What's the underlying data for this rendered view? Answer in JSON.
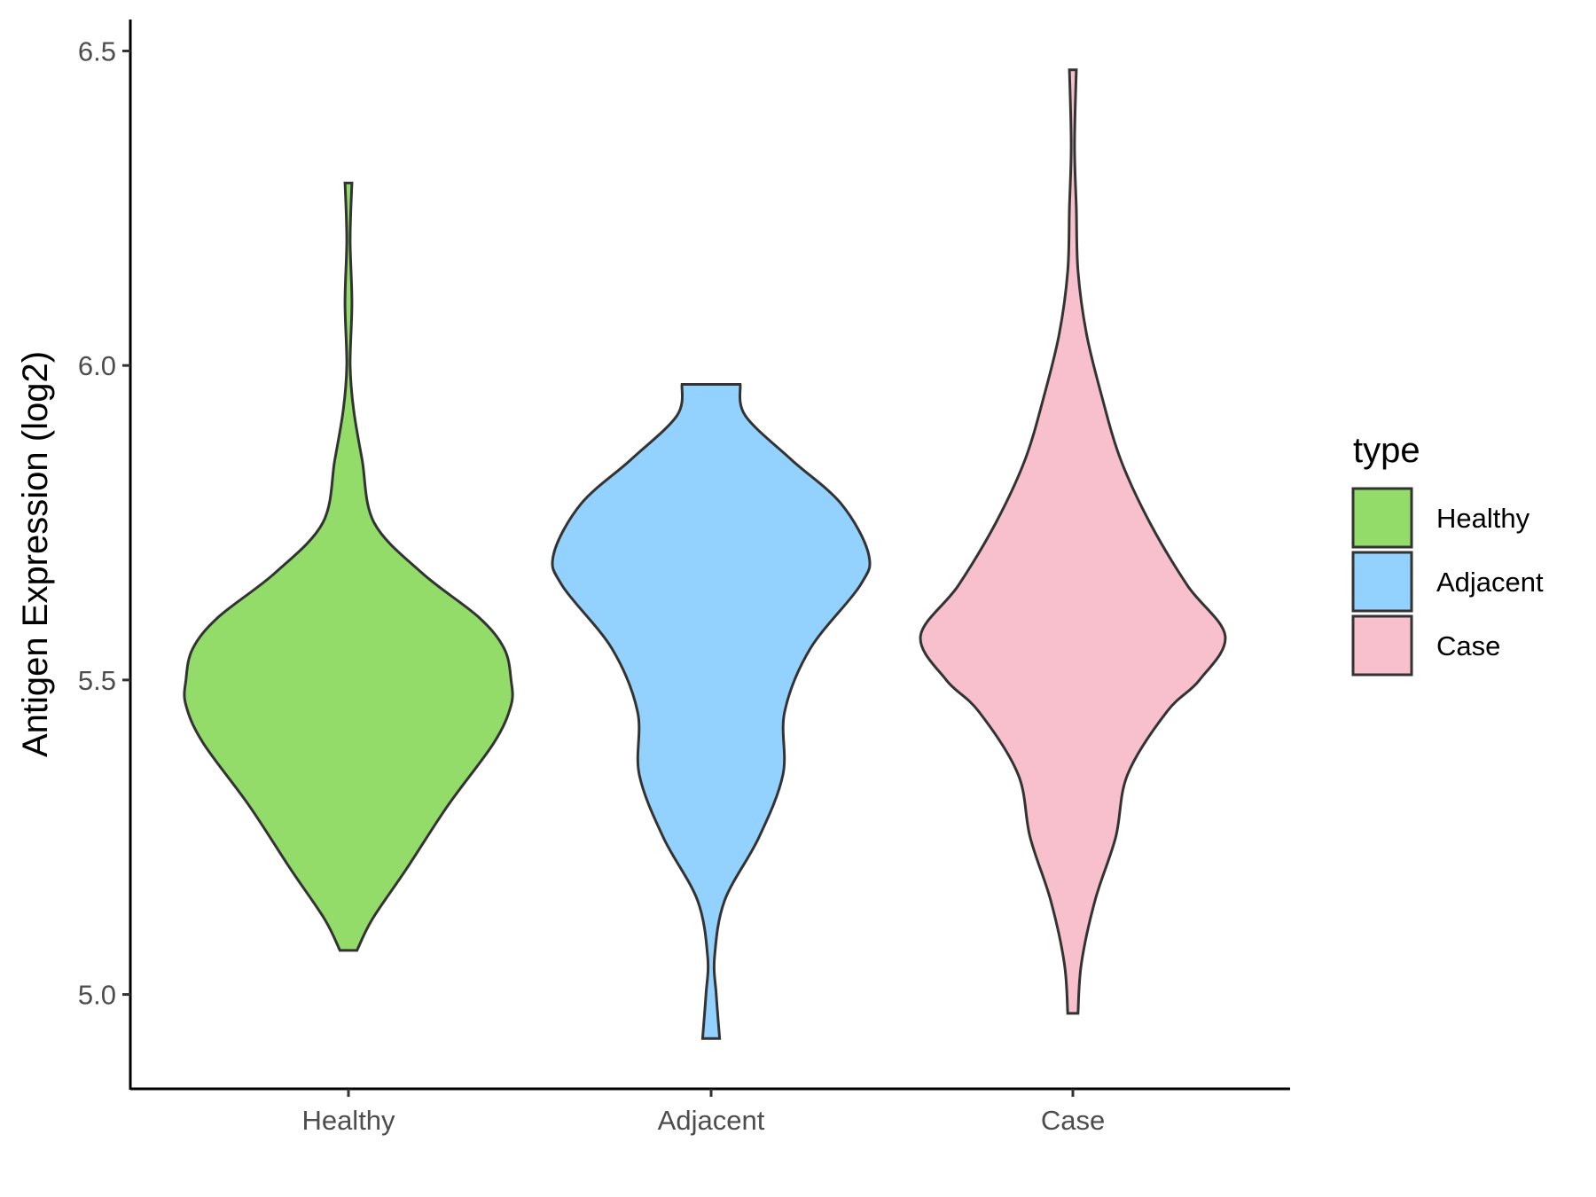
{
  "chart_data": {
    "type": "violin",
    "title": "",
    "xlabel": "",
    "ylabel": "Antigen Expression (log2)",
    "ylim": [
      4.85,
      6.55
    ],
    "yticks": [
      5.0,
      5.5,
      6.0,
      6.5
    ],
    "ytick_labels": [
      "5.0",
      "5.5",
      "6.0",
      "6.5"
    ],
    "categories": [
      "Healthy",
      "Adjacent",
      "Case"
    ],
    "grid": false,
    "legend": {
      "title": "type",
      "position": "right",
      "entries": [
        "Healthy",
        "Adjacent",
        "Case"
      ]
    },
    "colors": {
      "Healthy": "#93DC69",
      "Adjacent": "#93D2FE",
      "Case": "#F7C0CC",
      "outline": "#333333"
    },
    "series": [
      {
        "category": "Healthy",
        "range": [
          5.07,
          6.29
        ],
        "density_profile": [
          [
            5.07,
            0.05
          ],
          [
            5.12,
            0.14
          ],
          [
            5.2,
            0.34
          ],
          [
            5.3,
            0.58
          ],
          [
            5.4,
            0.85
          ],
          [
            5.46,
            0.95
          ],
          [
            5.5,
            0.95
          ],
          [
            5.55,
            0.91
          ],
          [
            5.6,
            0.76
          ],
          [
            5.67,
            0.43
          ],
          [
            5.75,
            0.15
          ],
          [
            5.85,
            0.08
          ],
          [
            5.93,
            0.03
          ],
          [
            6.0,
            0.01
          ],
          [
            6.1,
            0.02
          ],
          [
            6.2,
            0.01
          ],
          [
            6.29,
            0.02
          ]
        ]
      },
      {
        "category": "Adjacent",
        "range": [
          4.93,
          5.97
        ],
        "density_profile": [
          [
            4.93,
            0.05
          ],
          [
            5.0,
            0.03
          ],
          [
            5.06,
            0.02
          ],
          [
            5.15,
            0.08
          ],
          [
            5.25,
            0.28
          ],
          [
            5.35,
            0.42
          ],
          [
            5.45,
            0.43
          ],
          [
            5.55,
            0.58
          ],
          [
            5.65,
            0.87
          ],
          [
            5.7,
            0.92
          ],
          [
            5.78,
            0.76
          ],
          [
            5.85,
            0.47
          ],
          [
            5.92,
            0.2
          ],
          [
            5.97,
            0.17
          ]
        ]
      },
      {
        "category": "Case",
        "range": [
          4.97,
          6.47
        ],
        "density_profile": [
          [
            4.97,
            0.03
          ],
          [
            5.05,
            0.05
          ],
          [
            5.15,
            0.13
          ],
          [
            5.25,
            0.25
          ],
          [
            5.35,
            0.32
          ],
          [
            5.45,
            0.55
          ],
          [
            5.5,
            0.74
          ],
          [
            5.57,
            0.89
          ],
          [
            5.65,
            0.67
          ],
          [
            5.75,
            0.45
          ],
          [
            5.85,
            0.28
          ],
          [
            5.95,
            0.17
          ],
          [
            6.05,
            0.08
          ],
          [
            6.15,
            0.03
          ],
          [
            6.25,
            0.02
          ],
          [
            6.35,
            0.01
          ],
          [
            6.47,
            0.02
          ]
        ]
      }
    ]
  }
}
